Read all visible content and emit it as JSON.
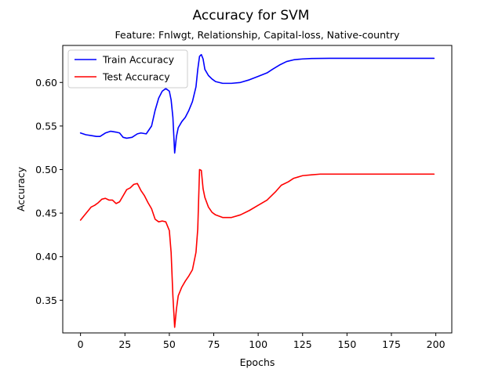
{
  "chart_data": {
    "type": "line",
    "title": "Accuracy for SVM",
    "subtitle": "Feature: Fnlwgt, Relationship, Capital-loss, Native-country",
    "xlabel": "Epochs",
    "ylabel": "Accuracy",
    "xlim": [
      -10,
      209
    ],
    "ylim": [
      0.3125,
      0.6425
    ],
    "xticks": [
      0,
      25,
      50,
      75,
      100,
      125,
      150,
      175,
      200
    ],
    "xtick_labels": [
      "0",
      "25",
      "50",
      "75",
      "100",
      "125",
      "150",
      "175",
      "200"
    ],
    "yticks": [
      0.35,
      0.4,
      0.45,
      0.5,
      0.55,
      0.6
    ],
    "ytick_labels": [
      "0.35",
      "0.40",
      "0.45",
      "0.50",
      "0.55",
      "0.60"
    ],
    "grid": false,
    "legend_position": "top-left",
    "series": [
      {
        "name": "Train Accuracy",
        "color": "#0000ff",
        "points": [
          [
            0,
            0.542
          ],
          [
            3,
            0.54
          ],
          [
            6,
            0.539
          ],
          [
            9,
            0.538
          ],
          [
            11,
            0.538
          ],
          [
            14,
            0.542
          ],
          [
            17,
            0.544
          ],
          [
            20,
            0.543
          ],
          [
            22,
            0.542
          ],
          [
            24,
            0.537
          ],
          [
            26,
            0.536
          ],
          [
            29,
            0.537
          ],
          [
            32,
            0.541
          ],
          [
            34,
            0.542
          ],
          [
            37,
            0.541
          ],
          [
            40,
            0.55
          ],
          [
            42,
            0.568
          ],
          [
            44,
            0.582
          ],
          [
            46,
            0.59
          ],
          [
            48,
            0.593
          ],
          [
            50,
            0.59
          ],
          [
            51,
            0.58
          ],
          [
            52,
            0.56
          ],
          [
            53,
            0.519
          ],
          [
            54,
            0.538
          ],
          [
            55,
            0.548
          ],
          [
            57,
            0.555
          ],
          [
            59,
            0.56
          ],
          [
            61,
            0.568
          ],
          [
            63,
            0.578
          ],
          [
            65,
            0.595
          ],
          [
            66,
            0.615
          ],
          [
            67,
            0.63
          ],
          [
            68,
            0.632
          ],
          [
            69,
            0.627
          ],
          [
            70,
            0.615
          ],
          [
            72,
            0.608
          ],
          [
            74,
            0.604
          ],
          [
            76,
            0.601
          ],
          [
            80,
            0.599
          ],
          [
            85,
            0.599
          ],
          [
            90,
            0.6
          ],
          [
            95,
            0.603
          ],
          [
            100,
            0.607
          ],
          [
            105,
            0.611
          ],
          [
            108,
            0.615
          ],
          [
            112,
            0.62
          ],
          [
            116,
            0.624
          ],
          [
            120,
            0.626
          ],
          [
            125,
            0.627
          ],
          [
            130,
            0.6275
          ],
          [
            140,
            0.6277
          ],
          [
            160,
            0.6277
          ],
          [
            180,
            0.6277
          ],
          [
            199,
            0.6277
          ]
        ]
      },
      {
        "name": "Test Accuracy",
        "color": "#ff0000",
        "points": [
          [
            0,
            0.442
          ],
          [
            2,
            0.447
          ],
          [
            4,
            0.452
          ],
          [
            6,
            0.457
          ],
          [
            8,
            0.459
          ],
          [
            10,
            0.462
          ],
          [
            12,
            0.466
          ],
          [
            14,
            0.467
          ],
          [
            16,
            0.465
          ],
          [
            18,
            0.465
          ],
          [
            20,
            0.461
          ],
          [
            22,
            0.463
          ],
          [
            24,
            0.47
          ],
          [
            26,
            0.477
          ],
          [
            28,
            0.479
          ],
          [
            30,
            0.483
          ],
          [
            32,
            0.484
          ],
          [
            34,
            0.476
          ],
          [
            36,
            0.47
          ],
          [
            38,
            0.462
          ],
          [
            40,
            0.455
          ],
          [
            42,
            0.443
          ],
          [
            44,
            0.44
          ],
          [
            46,
            0.441
          ],
          [
            48,
            0.44
          ],
          [
            50,
            0.43
          ],
          [
            51,
            0.405
          ],
          [
            52,
            0.355
          ],
          [
            53,
            0.319
          ],
          [
            54,
            0.34
          ],
          [
            55,
            0.355
          ],
          [
            57,
            0.365
          ],
          [
            59,
            0.372
          ],
          [
            61,
            0.378
          ],
          [
            63,
            0.385
          ],
          [
            65,
            0.405
          ],
          [
            66,
            0.432
          ],
          [
            67,
            0.5
          ],
          [
            68,
            0.499
          ],
          [
            69,
            0.478
          ],
          [
            70,
            0.468
          ],
          [
            72,
            0.457
          ],
          [
            74,
            0.451
          ],
          [
            76,
            0.448
          ],
          [
            80,
            0.445
          ],
          [
            85,
            0.445
          ],
          [
            90,
            0.448
          ],
          [
            95,
            0.453
          ],
          [
            100,
            0.459
          ],
          [
            105,
            0.465
          ],
          [
            110,
            0.475
          ],
          [
            113,
            0.482
          ],
          [
            117,
            0.486
          ],
          [
            120,
            0.49
          ],
          [
            125,
            0.493
          ],
          [
            130,
            0.494
          ],
          [
            135,
            0.4948
          ],
          [
            150,
            0.4948
          ],
          [
            170,
            0.4948
          ],
          [
            199,
            0.4948
          ]
        ]
      }
    ]
  }
}
